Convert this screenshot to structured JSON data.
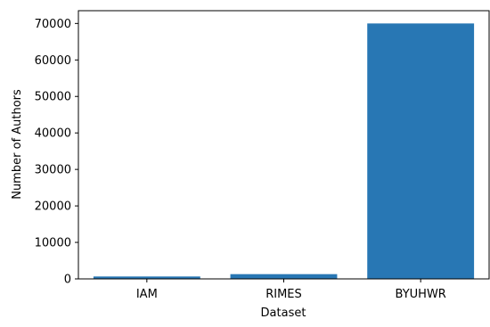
{
  "chart_data": {
    "type": "bar",
    "title": "",
    "xlabel": "Dataset",
    "ylabel": "Number of Authors",
    "categories": [
      "IAM",
      "RIMES",
      "BYUHWR"
    ],
    "values": [
      657,
      1300,
      70000
    ],
    "ylim": [
      0,
      73500
    ],
    "yticks": [
      0,
      10000,
      20000,
      30000,
      40000,
      50000,
      60000,
      70000
    ],
    "bar_color": "#2877b4",
    "grid": false,
    "legend": "none"
  }
}
